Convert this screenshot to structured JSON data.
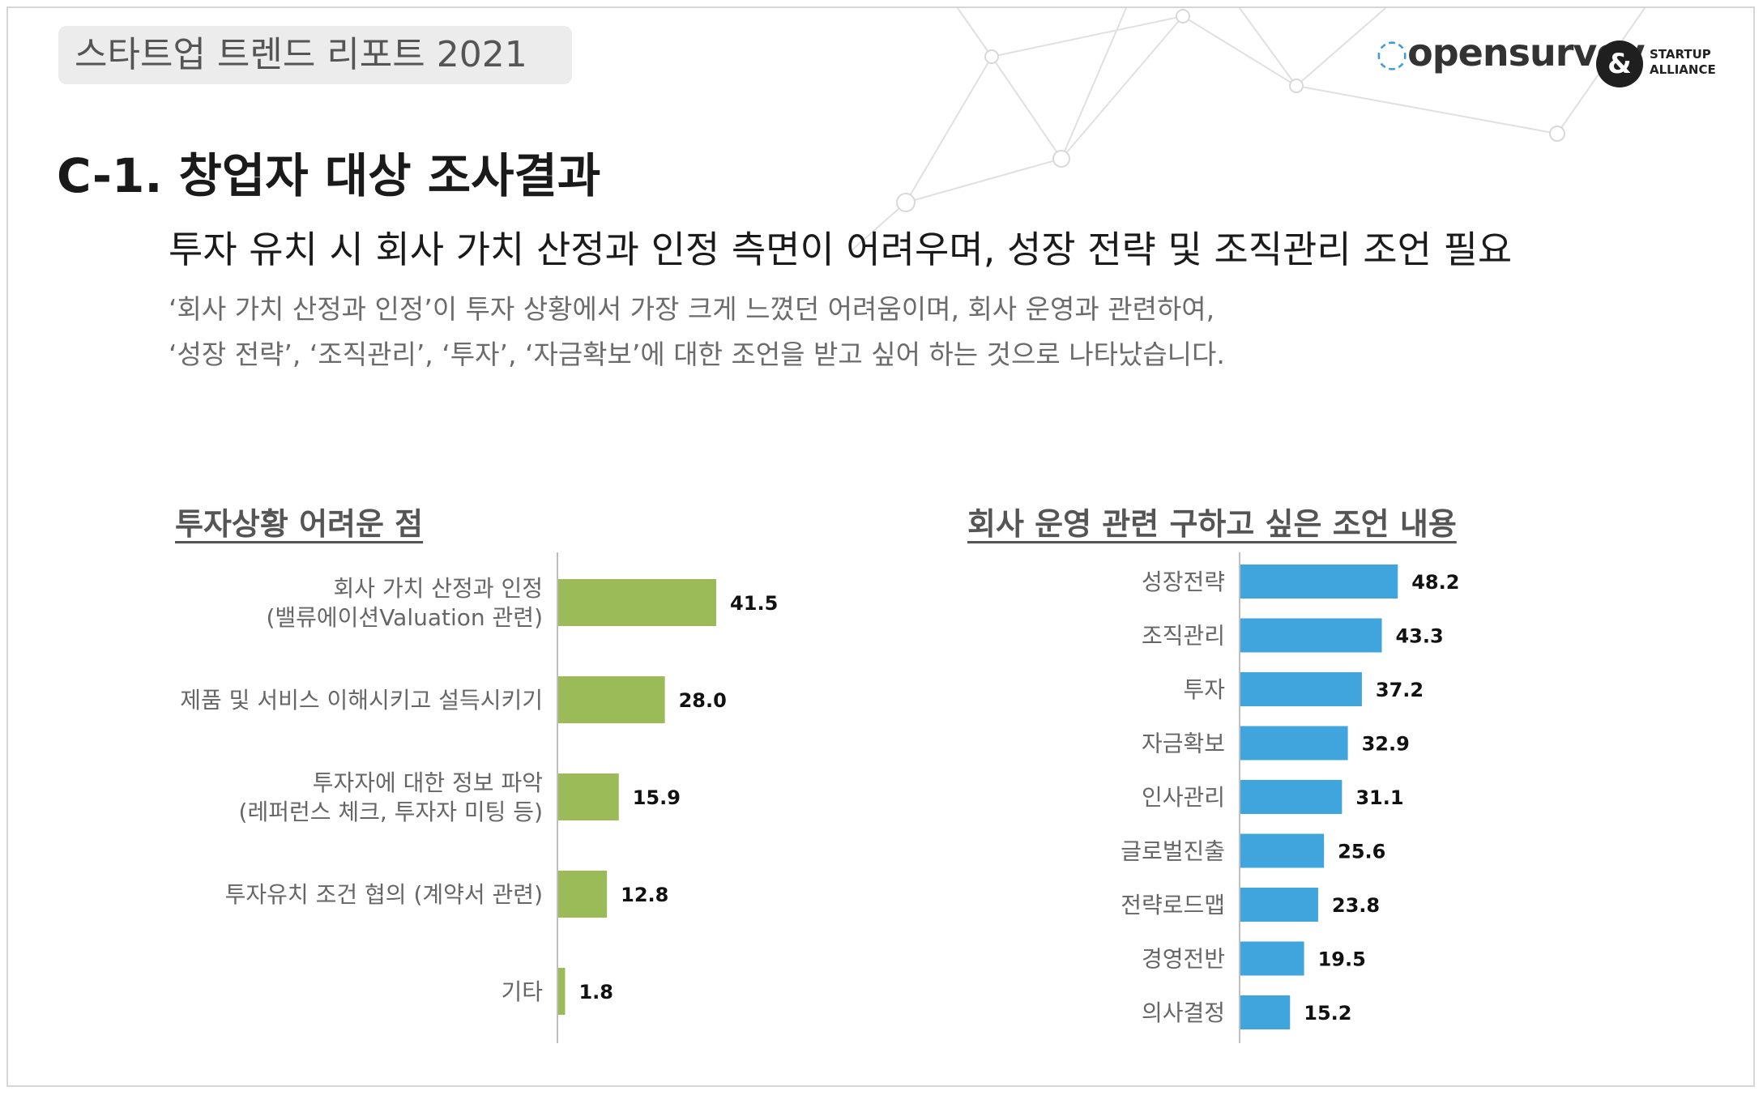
{
  "header": {
    "report_title": "스타트업 트렌드 리포트 2021",
    "logo_opensurvey": "opensurvey",
    "logo_alliance_line1": "STARTUP",
    "logo_alliance_line2": "ALLIANCE"
  },
  "section_title": "C-1. 창업자 대상 조사결과",
  "headline": "투자 유치 시 회사 가치 산정과 인정 측면이 어려우며, 성장 전략 및 조직관리 조언 필요",
  "body": {
    "line1": "‘회사 가치 산정과 인정’이 투자 상황에서 가장 크게 느꼈던 어려움이며, 회사 운영과 관련하여,",
    "line2": "‘성장 전략’, ‘조직관리’, ‘투자’, ‘자금확보’에 대한 조언을 받고 싶어 하는 것으로 나타났습니다."
  },
  "chart_data": [
    {
      "type": "bar",
      "orientation": "horizontal",
      "title": "투자상황 어려운 점",
      "color": "#9bbb59",
      "categories": [
        [
          "회사 가치 산정과 인정",
          "(밸류에이션Valuation 관련)"
        ],
        [
          "제품 및 서비스 이해시키고 설득시키기"
        ],
        [
          "투자자에 대한 정보 파악",
          "(레퍼런스 체크, 투자자 미팅 등)"
        ],
        [
          "투자유치 조건 협의 (계약서 관련)"
        ],
        [
          "기타"
        ]
      ],
      "values": [
        41.5,
        28.0,
        15.9,
        12.8,
        1.8
      ],
      "value_labels": [
        "41.5",
        "28.0",
        "15.9",
        "12.8",
        "1.8"
      ]
    },
    {
      "type": "bar",
      "orientation": "horizontal",
      "title": "회사 운영 관련 구하고 싶은 조언 내용",
      "color": "#41a5dd",
      "categories": [
        [
          "성장전략"
        ],
        [
          "조직관리"
        ],
        [
          "투자"
        ],
        [
          "자금확보"
        ],
        [
          "인사관리"
        ],
        [
          "글로벌진출"
        ],
        [
          "전략로드맵"
        ],
        [
          "경영전반"
        ],
        [
          "의사결정"
        ]
      ],
      "values": [
        48.2,
        43.3,
        37.2,
        32.9,
        31.1,
        25.6,
        23.8,
        19.5,
        15.2
      ],
      "value_labels": [
        "48.2",
        "43.3",
        "37.2",
        "32.9",
        "31.1",
        "25.6",
        "23.8",
        "19.5",
        "15.2"
      ]
    }
  ]
}
